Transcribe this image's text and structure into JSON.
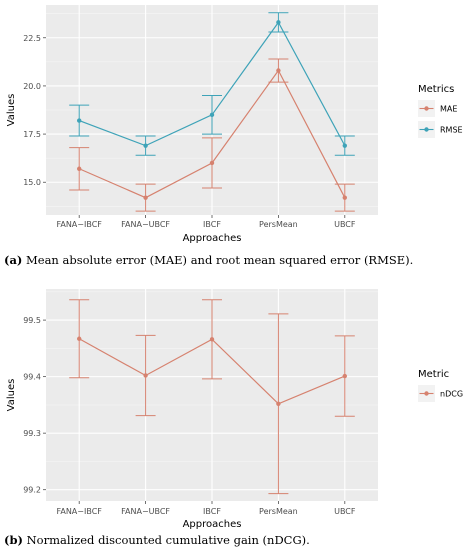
{
  "chart_data": [
    {
      "type": "line",
      "categories": [
        "FANA−IBCF",
        "FANA−UBCF",
        "IBCF",
        "PersMean",
        "UBCF"
      ],
      "xlabel": "Approaches",
      "ylabel": "Values",
      "ylim": [
        13.3,
        24.2
      ],
      "yticks": [
        15.0,
        17.5,
        20.0,
        22.5
      ],
      "ytick_labels": [
        "15.0",
        "17.5",
        "20.0",
        "22.5"
      ],
      "grid": true,
      "legend_title": "Metrics",
      "legend_position": "right",
      "series": [
        {
          "name": "MAE",
          "color": "#d6826f",
          "values": [
            15.7,
            14.2,
            16.0,
            20.8,
            14.2
          ],
          "lower": [
            14.6,
            13.5,
            14.7,
            20.2,
            13.5
          ],
          "upper": [
            16.8,
            14.9,
            17.3,
            21.4,
            14.9
          ]
        },
        {
          "name": "RMSE",
          "color": "#3ea3b8",
          "values": [
            18.2,
            16.9,
            18.5,
            23.3,
            16.9
          ],
          "lower": [
            17.4,
            16.4,
            17.5,
            22.8,
            16.4
          ],
          "upper": [
            19.0,
            17.4,
            19.5,
            23.8,
            17.4
          ]
        }
      ]
    },
    {
      "type": "line",
      "categories": [
        "FANA−IBCF",
        "FANA−UBCF",
        "IBCF",
        "PersMean",
        "UBCF"
      ],
      "xlabel": "Approaches",
      "ylabel": "Values",
      "ylim": [
        99.18,
        99.555
      ],
      "yticks": [
        99.2,
        99.3,
        99.4,
        99.5
      ],
      "ytick_labels": [
        "99.2",
        "99.3",
        "99.4",
        "99.5"
      ],
      "grid": true,
      "legend_title": "Metric",
      "legend_position": "right",
      "series": [
        {
          "name": "nDCG",
          "color": "#d6826f",
          "values": [
            99.467,
            99.402,
            99.466,
            99.352,
            99.401
          ],
          "lower": [
            99.398,
            99.331,
            99.396,
            99.193,
            99.33
          ],
          "upper": [
            99.536,
            99.473,
            99.536,
            99.511,
            99.472
          ]
        }
      ]
    }
  ],
  "captions": {
    "a": {
      "label": "(a)",
      "text": " Mean absolute error (MAE) and root mean squared error (RMSE)."
    },
    "b": {
      "label": "(b)",
      "text": " Normalized discounted cumulative gain (nDCG)."
    }
  }
}
